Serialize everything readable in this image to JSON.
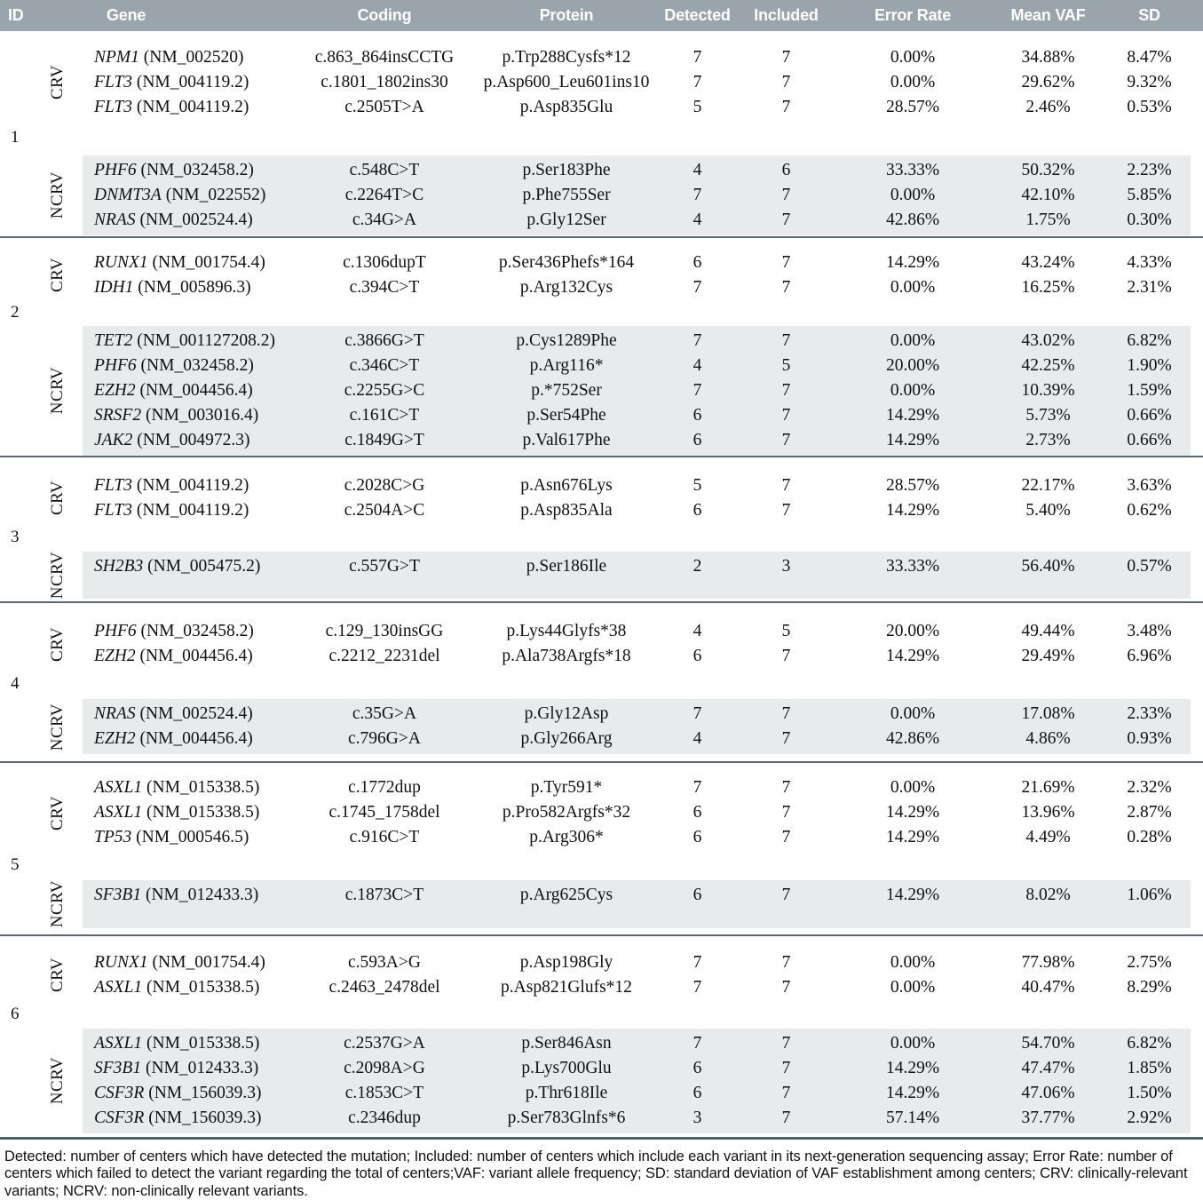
{
  "header": {
    "columns": [
      "ID",
      "Gene",
      "Coding",
      "Protein",
      "Detected",
      "Included",
      "Error Rate",
      "Mean VAF",
      "SD"
    ]
  },
  "row_group_labels": {
    "crv": "CRV",
    "ncrv": "NCRV"
  },
  "groups": [
    {
      "id": "1",
      "crv": [
        {
          "gene": "NPM1",
          "ref": "(NM_002520)",
          "coding": "c.863_864insCCTG",
          "protein": "p.Trp288Cysfs*12",
          "detected": "7",
          "included": "7",
          "error_rate": "0.00%",
          "mean_vaf": "34.88%",
          "sd": "8.47%"
        },
        {
          "gene": "FLT3",
          "ref": "(NM_004119.2)",
          "coding": "c.1801_1802ins30",
          "protein": "p.Asp600_Leu601ins10",
          "detected": "7",
          "included": "7",
          "error_rate": "0.00%",
          "mean_vaf": "29.62%",
          "sd": "9.32%"
        },
        {
          "gene": "FLT3",
          "ref": "(NM_004119.2)",
          "coding": "c.2505T>A",
          "protein": "p.Asp835Glu",
          "detected": "5",
          "included": "7",
          "error_rate": "28.57%",
          "mean_vaf": "2.46%",
          "sd": "0.53%"
        }
      ],
      "ncrv": [
        {
          "gene": "PHF6",
          "ref": "(NM_032458.2)",
          "coding": "c.548C>T",
          "protein": "p.Ser183Phe",
          "detected": "4",
          "included": "6",
          "error_rate": "33.33%",
          "mean_vaf": "50.32%",
          "sd": "2.23%"
        },
        {
          "gene": "DNMT3A",
          "ref": "(NM_022552)",
          "coding": "c.2264T>C",
          "protein": "p.Phe755Ser",
          "detected": "7",
          "included": "7",
          "error_rate": "0.00%",
          "mean_vaf": "42.10%",
          "sd": "5.85%"
        },
        {
          "gene": "NRAS",
          "ref": "(NM_002524.4)",
          "coding": "c.34G>A",
          "protein": "p.Gly12Ser",
          "detected": "4",
          "included": "7",
          "error_rate": "42.86%",
          "mean_vaf": "1.75%",
          "sd": "0.30%"
        }
      ]
    },
    {
      "id": "2",
      "crv": [
        {
          "gene": "RUNX1",
          "ref": "(NM_001754.4)",
          "coding": "c.1306dupT",
          "protein": "p.Ser436Phefs*164",
          "detected": "6",
          "included": "7",
          "error_rate": "14.29%",
          "mean_vaf": "43.24%",
          "sd": "4.33%"
        },
        {
          "gene": "IDH1",
          "ref": "(NM_005896.3)",
          "coding": "c.394C>T",
          "protein": "p.Arg132Cys",
          "detected": "7",
          "included": "7",
          "error_rate": "0.00%",
          "mean_vaf": "16.25%",
          "sd": "2.31%"
        }
      ],
      "ncrv": [
        {
          "gene": "TET2",
          "ref": "(NM_001127208.2)",
          "coding": "c.3866G>T",
          "protein": "p.Cys1289Phe",
          "detected": "7",
          "included": "7",
          "error_rate": "0.00%",
          "mean_vaf": "43.02%",
          "sd": "6.82%"
        },
        {
          "gene": "PHF6",
          "ref": "(NM_032458.2)",
          "coding": "c.346C>T",
          "protein": "p.Arg116*",
          "detected": "4",
          "included": "5",
          "error_rate": "20.00%",
          "mean_vaf": "42.25%",
          "sd": "1.90%"
        },
        {
          "gene": "EZH2",
          "ref": "(NM_004456.4)",
          "coding": "c.2255G>C",
          "protein": "p.*752Ser",
          "detected": "7",
          "included": "7",
          "error_rate": "0.00%",
          "mean_vaf": "10.39%",
          "sd": "1.59%"
        },
        {
          "gene": "SRSF2",
          "ref": "(NM_003016.4)",
          "coding": "c.161C>T",
          "protein": "p.Ser54Phe",
          "detected": "6",
          "included": "7",
          "error_rate": "14.29%",
          "mean_vaf": "5.73%",
          "sd": "0.66%"
        },
        {
          "gene": "JAK2",
          "ref": "(NM_004972.3)",
          "coding": "c.1849G>T",
          "protein": "p.Val617Phe",
          "detected": "6",
          "included": "7",
          "error_rate": "14.29%",
          "mean_vaf": "2.73%",
          "sd": "0.66%"
        }
      ]
    },
    {
      "id": "3",
      "crv": [
        {
          "gene": "FLT3",
          "ref": "(NM_004119.2)",
          "coding": "c.2028C>G",
          "protein": "p.Asn676Lys",
          "detected": "5",
          "included": "7",
          "error_rate": "28.57%",
          "mean_vaf": "22.17%",
          "sd": "3.63%"
        },
        {
          "gene": "FLT3",
          "ref": "(NM_004119.2)",
          "coding": "c.2504A>C",
          "protein": "p.Asp835Ala",
          "detected": "6",
          "included": "7",
          "error_rate": "14.29%",
          "mean_vaf": "5.40%",
          "sd": "0.62%"
        }
      ],
      "ncrv": [
        {
          "gene": "SH2B3",
          "ref": "(NM_005475.2)",
          "coding": "c.557G>T",
          "protein": "p.Ser186Ile",
          "detected": "2",
          "included": "3",
          "error_rate": "33.33%",
          "mean_vaf": "56.40%",
          "sd": "0.57%"
        }
      ]
    },
    {
      "id": "4",
      "crv": [
        {
          "gene": "PHF6",
          "ref": "(NM_032458.2)",
          "coding": "c.129_130insGG",
          "protein": "p.Lys44Glyfs*38",
          "detected": "4",
          "included": "5",
          "error_rate": "20.00%",
          "mean_vaf": "49.44%",
          "sd": "3.48%"
        },
        {
          "gene": "EZH2",
          "ref": "(NM_004456.4)",
          "coding": "c.2212_2231del",
          "protein": "p.Ala738Argfs*18",
          "detected": "6",
          "included": "7",
          "error_rate": "14.29%",
          "mean_vaf": "29.49%",
          "sd": "6.96%"
        }
      ],
      "ncrv": [
        {
          "gene": "NRAS",
          "ref": "(NM_002524.4)",
          "coding": "c.35G>A",
          "protein": "p.Gly12Asp",
          "detected": "7",
          "included": "7",
          "error_rate": "0.00%",
          "mean_vaf": "17.08%",
          "sd": "2.33%"
        },
        {
          "gene": "EZH2",
          "ref": "(NM_004456.4)",
          "coding": "c.796G>A",
          "protein": "p.Gly266Arg",
          "detected": "4",
          "included": "7",
          "error_rate": "42.86%",
          "mean_vaf": "4.86%",
          "sd": "0.93%"
        }
      ]
    },
    {
      "id": "5",
      "crv": [
        {
          "gene": "ASXL1",
          "ref": "(NM_015338.5)",
          "coding": "c.1772dup",
          "protein": "p.Tyr591*",
          "detected": "7",
          "included": "7",
          "error_rate": "0.00%",
          "mean_vaf": "21.69%",
          "sd": "2.32%"
        },
        {
          "gene": "ASXL1",
          "ref": "(NM_015338.5)",
          "coding": "c.1745_1758del",
          "protein": "p.Pro582Argfs*32",
          "detected": "6",
          "included": "7",
          "error_rate": "14.29%",
          "mean_vaf": "13.96%",
          "sd": "2.87%"
        },
        {
          "gene": "TP53",
          "ref": "(NM_000546.5)",
          "coding": "c.916C>T",
          "protein": "p.Arg306*",
          "detected": "6",
          "included": "7",
          "error_rate": "14.29%",
          "mean_vaf": "4.49%",
          "sd": "0.28%"
        }
      ],
      "ncrv": [
        {
          "gene": "SF3B1",
          "ref": "(NM_012433.3)",
          "coding": "c.1873C>T",
          "protein": "p.Arg625Cys",
          "detected": "6",
          "included": "7",
          "error_rate": "14.29%",
          "mean_vaf": "8.02%",
          "sd": "1.06%"
        }
      ]
    },
    {
      "id": "6",
      "crv": [
        {
          "gene": "RUNX1",
          "ref": "(NM_001754.4)",
          "coding": "c.593A>G",
          "protein": "p.Asp198Gly",
          "detected": "7",
          "included": "7",
          "error_rate": "0.00%",
          "mean_vaf": "77.98%",
          "sd": "2.75%"
        },
        {
          "gene": "ASXL1",
          "ref": "(NM_015338.5)",
          "coding": "c.2463_2478del",
          "protein": "p.Asp821Glufs*12",
          "detected": "7",
          "included": "7",
          "error_rate": "0.00%",
          "mean_vaf": "40.47%",
          "sd": "8.29%"
        }
      ],
      "ncrv": [
        {
          "gene": "ASXL1",
          "ref": "(NM_015338.5)",
          "coding": "c.2537G>A",
          "protein": "p.Ser846Asn",
          "detected": "7",
          "included": "7",
          "error_rate": "0.00%",
          "mean_vaf": "54.70%",
          "sd": "6.82%"
        },
        {
          "gene": "SF3B1",
          "ref": "(NM_012433.3)",
          "coding": "c.2098A>G",
          "protein": "p.Lys700Glu",
          "detected": "6",
          "included": "7",
          "error_rate": "14.29%",
          "mean_vaf": "47.47%",
          "sd": "1.85%"
        },
        {
          "gene": "CSF3R",
          "ref": "(NM_156039.3)",
          "coding": "c.1853C>T",
          "protein": "p.Thr618Ile",
          "detected": "6",
          "included": "7",
          "error_rate": "14.29%",
          "mean_vaf": "47.06%",
          "sd": "1.50%"
        },
        {
          "gene": "CSF3R",
          "ref": "(NM_156039.3)",
          "coding": "c.2346dup",
          "protein": "p.Ser783Glnfs*6",
          "detected": "3",
          "included": "7",
          "error_rate": "57.14%",
          "mean_vaf": "37.77%",
          "sd": "2.92%"
        }
      ]
    }
  ],
  "footnote": "Detected: number of centers which have detected the mutation; Included: number of centers which include each variant in its next-generation sequencing assay; Error Rate: number of centers which failed to detect the variant regarding the total of centers;VAF: variant allele frequency; SD: standard deviation of VAF establishment among centers; CRV: clinically-relevant variants; NCRV: non-clinically relevant variants.",
  "colors": {
    "header_bg": "#9aa5ab",
    "shaded_row_bg": "#e8eaeb",
    "separator": "#5a6a75"
  }
}
